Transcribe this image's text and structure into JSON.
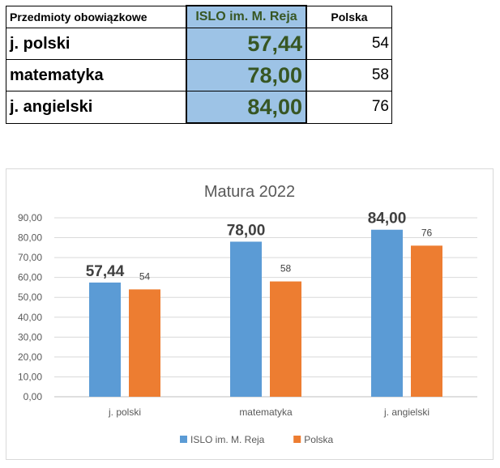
{
  "table": {
    "headers": [
      "Przedmioty obowiązkowe",
      "ISLO im. M. Reja",
      "Polska"
    ],
    "rows": [
      {
        "subject": "j. polski",
        "school": "57,44",
        "poland": "54"
      },
      {
        "subject": "matematyka",
        "school": "78,00",
        "poland": "58"
      },
      {
        "subject": "j. angielski",
        "school": "84,00",
        "poland": "76"
      }
    ]
  },
  "chart_data": {
    "type": "bar",
    "title": "Matura 2022",
    "categories": [
      "j. polski",
      "matematyka",
      "j. angielski"
    ],
    "series": [
      {
        "name": "ISLO im. M. Reja",
        "values": [
          57.44,
          78.0,
          84.0
        ],
        "labels": [
          "57,44",
          "78,00",
          "84,00"
        ],
        "color": "#5b9bd5"
      },
      {
        "name": "Polska",
        "values": [
          54,
          58,
          76
        ],
        "labels": [
          "54",
          "58",
          "76"
        ],
        "color": "#ed7d31"
      }
    ],
    "ylim": [
      0,
      90
    ],
    "yticks": [
      "0,00",
      "10,00",
      "20,00",
      "30,00",
      "40,00",
      "50,00",
      "60,00",
      "70,00",
      "80,00",
      "90,00"
    ],
    "grid": true,
    "legend": "bottom"
  }
}
